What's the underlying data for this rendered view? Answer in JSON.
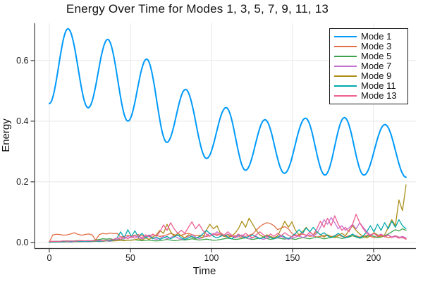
{
  "title": "Energy Over Time for Modes 1, 3, 5, 7, 9, 11, 13",
  "axes": {
    "xlabel": "Time",
    "ylabel": "Energy"
  },
  "colors": {
    "background": "#ffffff",
    "grid": "#e8e8e8",
    "spine": "#3c3c3c",
    "tick_text": "#1a1a1a",
    "legend_border": "#1c1c1c"
  },
  "chart_data": {
    "type": "line",
    "title": "Energy Over Time for Modes 1, 3, 5, 7, 9, 11, 13",
    "xlabel": "Time",
    "ylabel": "Energy",
    "xlim": [
      -9.1,
      226.1
    ],
    "ylim": [
      -0.02,
      0.723
    ],
    "xticks": [
      0,
      50,
      100,
      150,
      200
    ],
    "xtick_labels": [
      "0",
      "50",
      "100",
      "150",
      "200"
    ],
    "yticks": [
      0,
      0.2,
      0.4,
      0.6
    ],
    "ytick_labels": [
      "0.0",
      "0.2",
      "0.4",
      "0.6"
    ],
    "grid": true,
    "legend_position": "top-right",
    "series": [
      {
        "name": "Mode 1",
        "color": "#009AFA",
        "width": 2,
        "type": "smooth-extrema",
        "extrema": [
          [
            0,
            0.458
          ],
          [
            11.5,
            0.705
          ],
          [
            24,
            0.444
          ],
          [
            36,
            0.67
          ],
          [
            48.5,
            0.4
          ],
          [
            60,
            0.605
          ],
          [
            72.5,
            0.33
          ],
          [
            84,
            0.505
          ],
          [
            97,
            0.277
          ],
          [
            109,
            0.445
          ],
          [
            121,
            0.238
          ],
          [
            133,
            0.405
          ],
          [
            145,
            0.228
          ],
          [
            158,
            0.41
          ],
          [
            170,
            0.222
          ],
          [
            182,
            0.412
          ],
          [
            194,
            0.222
          ],
          [
            207,
            0.389
          ],
          [
            220,
            0.215
          ]
        ]
      },
      {
        "name": "Mode 3",
        "color": "#E36F47",
        "width": 1.3,
        "type": "sampled",
        "t0": 0,
        "dt": 2.2,
        "values": [
          0.001,
          0.025,
          0.027,
          0.026,
          0.024,
          0.025,
          0.028,
          0.032,
          0.027,
          0.024,
          0.026,
          0.028,
          0.025,
          0.008,
          0.026,
          0.03,
          0.028,
          0.031,
          0.029,
          0.03,
          0.018,
          0.02,
          0.023,
          0.021,
          0.024,
          0.026,
          0.022,
          0.02,
          0.022,
          0.025,
          0.023,
          0.02,
          0.022,
          0.025,
          0.03,
          0.026,
          0.022,
          0.024,
          0.028,
          0.03,
          0.026,
          0.022,
          0.024,
          0.022,
          0.02,
          0.022,
          0.025,
          0.028,
          0.024,
          0.02,
          0.018,
          0.02,
          0.022,
          0.019,
          0.017,
          0.02,
          0.024,
          0.028,
          0.04,
          0.052,
          0.06,
          0.065,
          0.062,
          0.055,
          0.042,
          0.048,
          0.052,
          0.045,
          0.03,
          0.022,
          0.025,
          0.028,
          0.024,
          0.02,
          0.022,
          0.018,
          0.02,
          0.024,
          0.022,
          0.019,
          0.022,
          0.025,
          0.02,
          0.018,
          0.022,
          0.026,
          0.022,
          0.018,
          0.02,
          0.024,
          0.02,
          0.016,
          0.018,
          0.022,
          0.02,
          0.016,
          0.018,
          0.022,
          0.018,
          0.015,
          0.012
        ]
      },
      {
        "name": "Mode 5",
        "color": "#3DA44E",
        "width": 1.3,
        "type": "sampled",
        "t0": 0,
        "dt": 2.2,
        "values": [
          0.002,
          0.003,
          0.004,
          0.003,
          0.004,
          0.005,
          0.004,
          0.005,
          0.006,
          0.005,
          0.004,
          0.005,
          0.006,
          0.008,
          0.01,
          0.012,
          0.011,
          0.012,
          0.01,
          0.009,
          0.01,
          0.008,
          0.007,
          0.008,
          0.009,
          0.007,
          0.006,
          0.007,
          0.008,
          0.006,
          0.005,
          0.006,
          0.008,
          0.01,
          0.008,
          0.006,
          0.007,
          0.009,
          0.008,
          0.01,
          0.012,
          0.01,
          0.008,
          0.009,
          0.011,
          0.009,
          0.007,
          0.008,
          0.01,
          0.012,
          0.014,
          0.012,
          0.01,
          0.011,
          0.013,
          0.015,
          0.012,
          0.01,
          0.012,
          0.014,
          0.016,
          0.013,
          0.01,
          0.012,
          0.015,
          0.013,
          0.011,
          0.014,
          0.012,
          0.01,
          0.013,
          0.016,
          0.014,
          0.012,
          0.015,
          0.018,
          0.015,
          0.012,
          0.014,
          0.017,
          0.02,
          0.016,
          0.013,
          0.015,
          0.018,
          0.022,
          0.018,
          0.014,
          0.016,
          0.02,
          0.024,
          0.02,
          0.016,
          0.018,
          0.022,
          0.028,
          0.035,
          0.042,
          0.038,
          0.045,
          0.04
        ]
      },
      {
        "name": "Mode 7",
        "color": "#C371D2",
        "width": 1.3,
        "type": "sampled",
        "t0": 0,
        "dt": 2.2,
        "values": [
          0.001,
          0.001,
          0.002,
          0.001,
          0.002,
          0.002,
          0.001,
          0.002,
          0.003,
          0.002,
          0.003,
          0.002,
          0.003,
          0.004,
          0.003,
          0.004,
          0.005,
          0.004,
          0.006,
          0.01,
          0.018,
          0.012,
          0.02,
          0.015,
          0.022,
          0.016,
          0.012,
          0.018,
          0.025,
          0.015,
          0.01,
          0.014,
          0.02,
          0.012,
          0.016,
          0.022,
          0.015,
          0.01,
          0.015,
          0.02,
          0.025,
          0.018,
          0.012,
          0.016,
          0.022,
          0.03,
          0.025,
          0.035,
          0.028,
          0.02,
          0.028,
          0.022,
          0.015,
          0.02,
          0.025,
          0.018,
          0.012,
          0.016,
          0.02,
          0.014,
          0.01,
          0.014,
          0.018,
          0.012,
          0.016,
          0.02,
          0.015,
          0.01,
          0.014,
          0.018,
          0.022,
          0.016,
          0.02,
          0.026,
          0.02,
          0.03,
          0.05,
          0.075,
          0.06,
          0.082,
          0.065,
          0.045,
          0.055,
          0.04,
          0.048,
          0.06,
          0.045,
          0.065,
          0.05,
          0.035,
          0.025,
          0.03,
          0.022,
          0.028,
          0.02,
          0.025,
          0.018,
          0.022,
          0.016,
          0.02,
          0.015
        ]
      },
      {
        "name": "Mode 9",
        "color": "#AC8E18",
        "width": 1.3,
        "type": "sampled",
        "t0": 0,
        "dt": 2.2,
        "values": [
          0.001,
          0.001,
          0.001,
          0.002,
          0.001,
          0.002,
          0.002,
          0.003,
          0.002,
          0.003,
          0.003,
          0.004,
          0.003,
          0.004,
          0.005,
          0.004,
          0.005,
          0.006,
          0.005,
          0.006,
          0.007,
          0.006,
          0.008,
          0.007,
          0.009,
          0.012,
          0.008,
          0.015,
          0.01,
          0.018,
          0.025,
          0.04,
          0.03,
          0.06,
          0.035,
          0.02,
          0.03,
          0.022,
          0.015,
          0.025,
          0.018,
          0.012,
          0.02,
          0.015,
          0.04,
          0.06,
          0.045,
          0.055,
          0.03,
          0.02,
          0.025,
          0.02,
          0.03,
          0.045,
          0.07,
          0.05,
          0.08,
          0.06,
          0.04,
          0.025,
          0.018,
          0.025,
          0.02,
          0.015,
          0.022,
          0.045,
          0.07,
          0.05,
          0.068,
          0.04,
          0.025,
          0.035,
          0.05,
          0.035,
          0.025,
          0.035,
          0.025,
          0.018,
          0.025,
          0.02,
          0.015,
          0.022,
          0.03,
          0.022,
          0.04,
          0.055,
          0.04,
          0.028,
          0.02,
          0.015,
          0.022,
          0.032,
          0.025,
          0.018,
          0.025,
          0.05,
          0.075,
          0.055,
          0.14,
          0.105,
          0.19
        ]
      },
      {
        "name": "Mode 11",
        "color": "#00AAAE",
        "width": 1.3,
        "type": "sampled",
        "t0": 0,
        "dt": 2.2,
        "values": [
          0.001,
          0.002,
          0.001,
          0.002,
          0.002,
          0.003,
          0.002,
          0.003,
          0.003,
          0.004,
          0.003,
          0.004,
          0.004,
          0.005,
          0.004,
          0.005,
          0.006,
          0.005,
          0.008,
          0.015,
          0.035,
          0.015,
          0.042,
          0.02,
          0.038,
          0.018,
          0.03,
          0.015,
          0.022,
          0.012,
          0.018,
          0.01,
          0.015,
          0.02,
          0.012,
          0.018,
          0.025,
          0.015,
          0.01,
          0.015,
          0.02,
          0.014,
          0.018,
          0.028,
          0.04,
          0.03,
          0.02,
          0.015,
          0.02,
          0.025,
          0.018,
          0.012,
          0.018,
          0.025,
          0.02,
          0.015,
          0.02,
          0.025,
          0.018,
          0.012,
          0.016,
          0.022,
          0.016,
          0.012,
          0.018,
          0.024,
          0.018,
          0.012,
          0.02,
          0.03,
          0.042,
          0.03,
          0.048,
          0.035,
          0.05,
          0.035,
          0.025,
          0.032,
          0.022,
          0.015,
          0.022,
          0.03,
          0.022,
          0.015,
          0.02,
          0.028,
          0.02,
          0.015,
          0.022,
          0.035,
          0.055,
          0.035,
          0.06,
          0.04,
          0.065,
          0.045,
          0.07,
          0.05,
          0.075,
          0.055,
          0.045
        ]
      },
      {
        "name": "Mode 13",
        "color": "#ED5E93",
        "width": 1.3,
        "type": "sampled",
        "t0": 0,
        "dt": 2.2,
        "values": [
          0.003,
          0.004,
          0.003,
          0.004,
          0.005,
          0.004,
          0.005,
          0.004,
          0.005,
          0.006,
          0.005,
          0.006,
          0.005,
          0.006,
          0.007,
          0.006,
          0.007,
          0.008,
          0.01,
          0.015,
          0.01,
          0.018,
          0.012,
          0.02,
          0.014,
          0.022,
          0.015,
          0.025,
          0.018,
          0.028,
          0.02,
          0.035,
          0.058,
          0.04,
          0.065,
          0.045,
          0.03,
          0.04,
          0.03,
          0.05,
          0.068,
          0.045,
          0.06,
          0.04,
          0.028,
          0.02,
          0.03,
          0.022,
          0.032,
          0.024,
          0.035,
          0.025,
          0.018,
          0.028,
          0.02,
          0.03,
          0.022,
          0.015,
          0.025,
          0.035,
          0.025,
          0.018,
          0.028,
          0.02,
          0.03,
          0.022,
          0.032,
          0.024,
          0.018,
          0.026,
          0.02,
          0.03,
          0.022,
          0.034,
          0.025,
          0.045,
          0.07,
          0.05,
          0.08,
          0.055,
          0.088,
          0.06,
          0.04,
          0.05,
          0.035,
          0.06,
          0.093,
          0.065,
          0.045,
          0.03,
          0.022,
          0.03,
          0.02,
          0.026,
          0.018,
          0.024,
          0.016,
          0.02,
          0.014,
          0.018,
          0.01
        ]
      }
    ]
  }
}
